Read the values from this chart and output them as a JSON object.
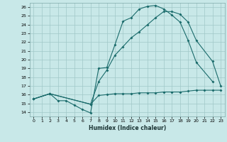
{
  "xlabel": "Humidex (Indice chaleur)",
  "bg_color": "#c8e8e8",
  "grid_color": "#a0c8c8",
  "line_color": "#1a6b6b",
  "xlim": [
    -0.5,
    23.5
  ],
  "ylim": [
    13.5,
    26.5
  ],
  "xticks": [
    0,
    1,
    2,
    3,
    4,
    5,
    6,
    7,
    8,
    9,
    10,
    11,
    12,
    13,
    14,
    15,
    16,
    17,
    18,
    19,
    20,
    21,
    22,
    23
  ],
  "yticks": [
    14,
    15,
    16,
    17,
    18,
    19,
    20,
    21,
    22,
    23,
    24,
    25,
    26
  ],
  "line1_x": [
    0,
    2,
    3,
    4,
    5,
    6,
    7,
    8,
    9,
    10,
    11,
    12,
    13,
    14,
    15,
    16,
    17,
    18,
    19,
    20,
    22
  ],
  "line1_y": [
    15.5,
    16.1,
    15.3,
    15.3,
    14.8,
    14.3,
    13.9,
    19.0,
    19.1,
    21.7,
    24.4,
    24.8,
    25.8,
    26.1,
    26.2,
    25.8,
    25.1,
    24.3,
    22.2,
    19.7,
    17.5
  ],
  "line2_x": [
    0,
    2,
    7,
    8,
    9,
    10,
    11,
    12,
    13,
    14,
    15,
    16,
    17,
    18,
    19,
    20,
    22,
    23
  ],
  "line2_y": [
    15.5,
    16.1,
    14.9,
    17.5,
    18.8,
    20.5,
    21.5,
    22.5,
    23.2,
    24.0,
    24.8,
    25.5,
    25.5,
    25.2,
    24.3,
    22.2,
    19.8,
    17.0
  ],
  "line3_x": [
    0,
    2,
    7,
    8,
    9,
    10,
    11,
    12,
    13,
    14,
    15,
    16,
    17,
    18,
    19,
    20,
    21,
    22,
    23
  ],
  "line3_y": [
    15.5,
    16.1,
    14.9,
    15.9,
    16.0,
    16.1,
    16.1,
    16.1,
    16.2,
    16.2,
    16.2,
    16.3,
    16.3,
    16.3,
    16.4,
    16.5,
    16.5,
    16.5,
    16.5
  ]
}
